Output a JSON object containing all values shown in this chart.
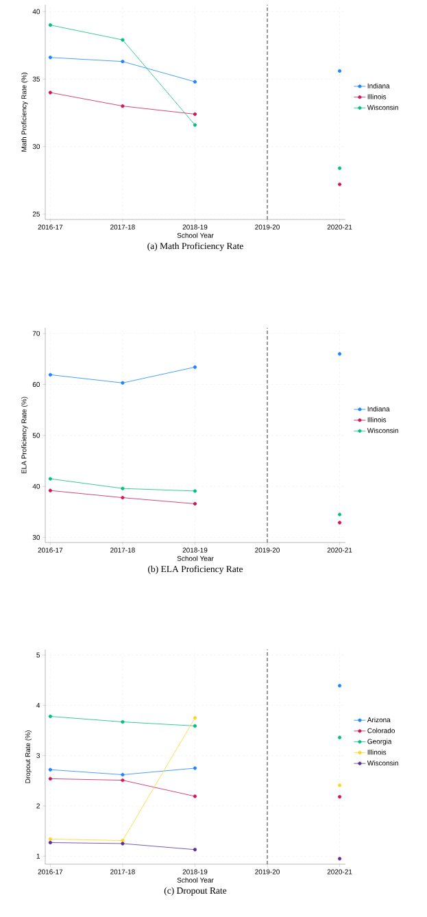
{
  "chart_data": [
    {
      "type": "line",
      "title": "(a) Math Proficiency Rate",
      "xlabel": "School Year",
      "ylabel": "Math Proficiency Rate (%)",
      "categories": [
        "2016-17",
        "2017-18",
        "2018-19",
        "2019-20",
        "2020-21"
      ],
      "series": [
        {
          "name": "Indiana",
          "color": "#1a85ff",
          "values": [
            36.6,
            36.3,
            34.8,
            null,
            35.6
          ]
        },
        {
          "name": "Illinois",
          "color": "#d41159",
          "values": [
            34.0,
            33.0,
            32.4,
            null,
            27.2
          ]
        },
        {
          "name": "Wisconsin",
          "color": "#00bf7f",
          "values": [
            39.0,
            37.9,
            31.6,
            null,
            28.4
          ]
        }
      ],
      "ylim": [
        24.6,
        40.5
      ],
      "yticks": [
        25,
        30,
        35,
        40
      ],
      "grid": true,
      "legend": "right",
      "marker": "circle",
      "ref_lines": [
        {
          "axis": "x",
          "value": "2019-20",
          "color": "#555555",
          "line_style": "dashed"
        }
      ]
    },
    {
      "type": "line",
      "title": "(b) ELA Proficiency Rate",
      "xlabel": "School Year",
      "ylabel": "ELA Proficiency Rate (%)",
      "categories": [
        "2016-17",
        "2017-18",
        "2018-19",
        "2019-20",
        "2020-21"
      ],
      "series": [
        {
          "name": "Indiana",
          "color": "#1a85ff",
          "values": [
            61.9,
            60.3,
            63.4,
            null,
            66.0
          ]
        },
        {
          "name": "Illinois",
          "color": "#d41159",
          "values": [
            39.2,
            37.8,
            36.6,
            null,
            32.9
          ]
        },
        {
          "name": "Wisconsin",
          "color": "#00bf7f",
          "values": [
            41.5,
            39.6,
            39.1,
            null,
            34.5
          ]
        }
      ],
      "ylim": [
        29.0,
        71.1
      ],
      "yticks": [
        30,
        40,
        50,
        60,
        70
      ],
      "grid": true,
      "legend": "right",
      "marker": "circle",
      "ref_lines": [
        {
          "axis": "x",
          "value": "2019-20",
          "color": "#555555",
          "line_style": "dashed"
        }
      ]
    },
    {
      "type": "line",
      "title": "(c) Dropout Rate",
      "xlabel": "School Year",
      "ylabel": "Dropout Rate (%)",
      "categories": [
        "2016-17",
        "2017-18",
        "2018-19",
        "2019-20",
        "2020-21"
      ],
      "series": [
        {
          "name": "Arizona",
          "color": "#1a85ff",
          "values": [
            2.72,
            2.62,
            2.75,
            null,
            4.39
          ]
        },
        {
          "name": "Colorado",
          "color": "#d41159",
          "values": [
            2.54,
            2.51,
            2.19,
            null,
            2.18
          ]
        },
        {
          "name": "Georgia",
          "color": "#00bf7f",
          "values": [
            3.78,
            3.67,
            3.59,
            null,
            3.36
          ]
        },
        {
          "name": "Illinois",
          "color": "#ffd320",
          "values": [
            1.34,
            1.31,
            3.75,
            null,
            2.41
          ]
        },
        {
          "name": "Wisconsin",
          "color": "#5b2c9e",
          "values": [
            1.27,
            1.25,
            1.13,
            null,
            0.95
          ]
        }
      ],
      "ylim": [
        0.84,
        5.11
      ],
      "yticks": [
        1,
        2,
        3,
        4,
        5
      ],
      "grid": true,
      "legend": "right",
      "marker": "circle",
      "ref_lines": [
        {
          "axis": "x",
          "value": "2019-20",
          "color": "#555555",
          "line_style": "dashed"
        }
      ]
    }
  ]
}
